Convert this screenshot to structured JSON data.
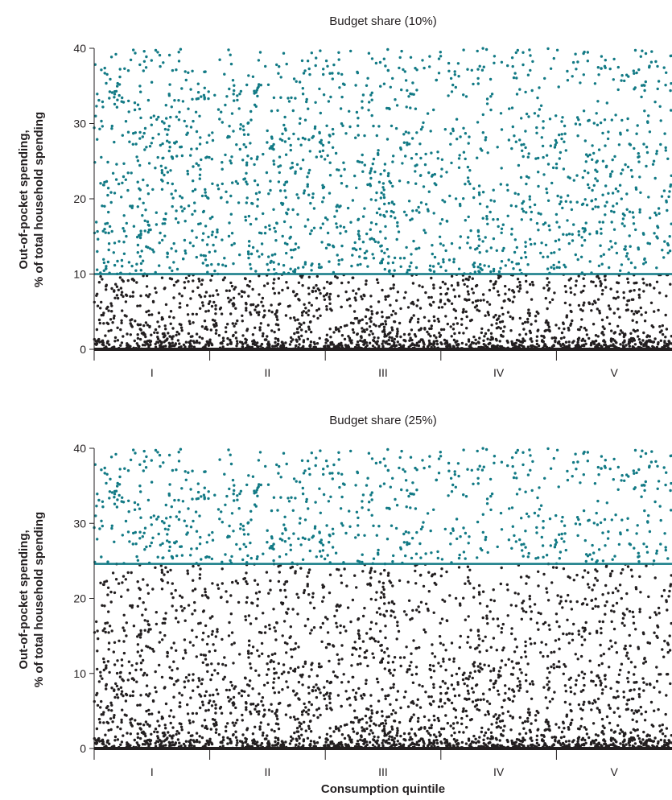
{
  "colors": {
    "above": "#127a85",
    "below": "#231f20",
    "threshold_line": "#127a85",
    "axis": "#231f20"
  },
  "chart_data": [
    {
      "type": "scatter",
      "title": "Budget share (10%)",
      "ylabel_line1": "Out-of-pocket spending,",
      "ylabel_line2": "% of total household spending",
      "xlabel": "",
      "categories": [
        "I",
        "II",
        "III",
        "IV",
        "V"
      ],
      "ylim": [
        0,
        40
      ],
      "yticks": [
        0,
        10,
        20,
        30,
        40
      ],
      "threshold": 10,
      "grid": false,
      "points_note_series": [
        {
          "name": "above threshold",
          "color": "#127a85"
        },
        {
          "name": "below threshold",
          "color": "#231f20"
        }
      ]
    },
    {
      "type": "scatter",
      "title": "Budget share (25%)",
      "ylabel_line1": "Out-of-pocket spending,",
      "ylabel_line2": "% of total household spending",
      "xlabel": "Consumption quintile",
      "categories": [
        "I",
        "II",
        "III",
        "IV",
        "V"
      ],
      "ylim": [
        0,
        40
      ],
      "yticks": [
        0,
        10,
        20,
        30,
        40
      ],
      "threshold": 24.6,
      "grid": false,
      "points_note_series": [
        {
          "name": "above threshold",
          "color": "#127a85"
        },
        {
          "name": "below threshold",
          "color": "#231f20"
        }
      ]
    }
  ]
}
